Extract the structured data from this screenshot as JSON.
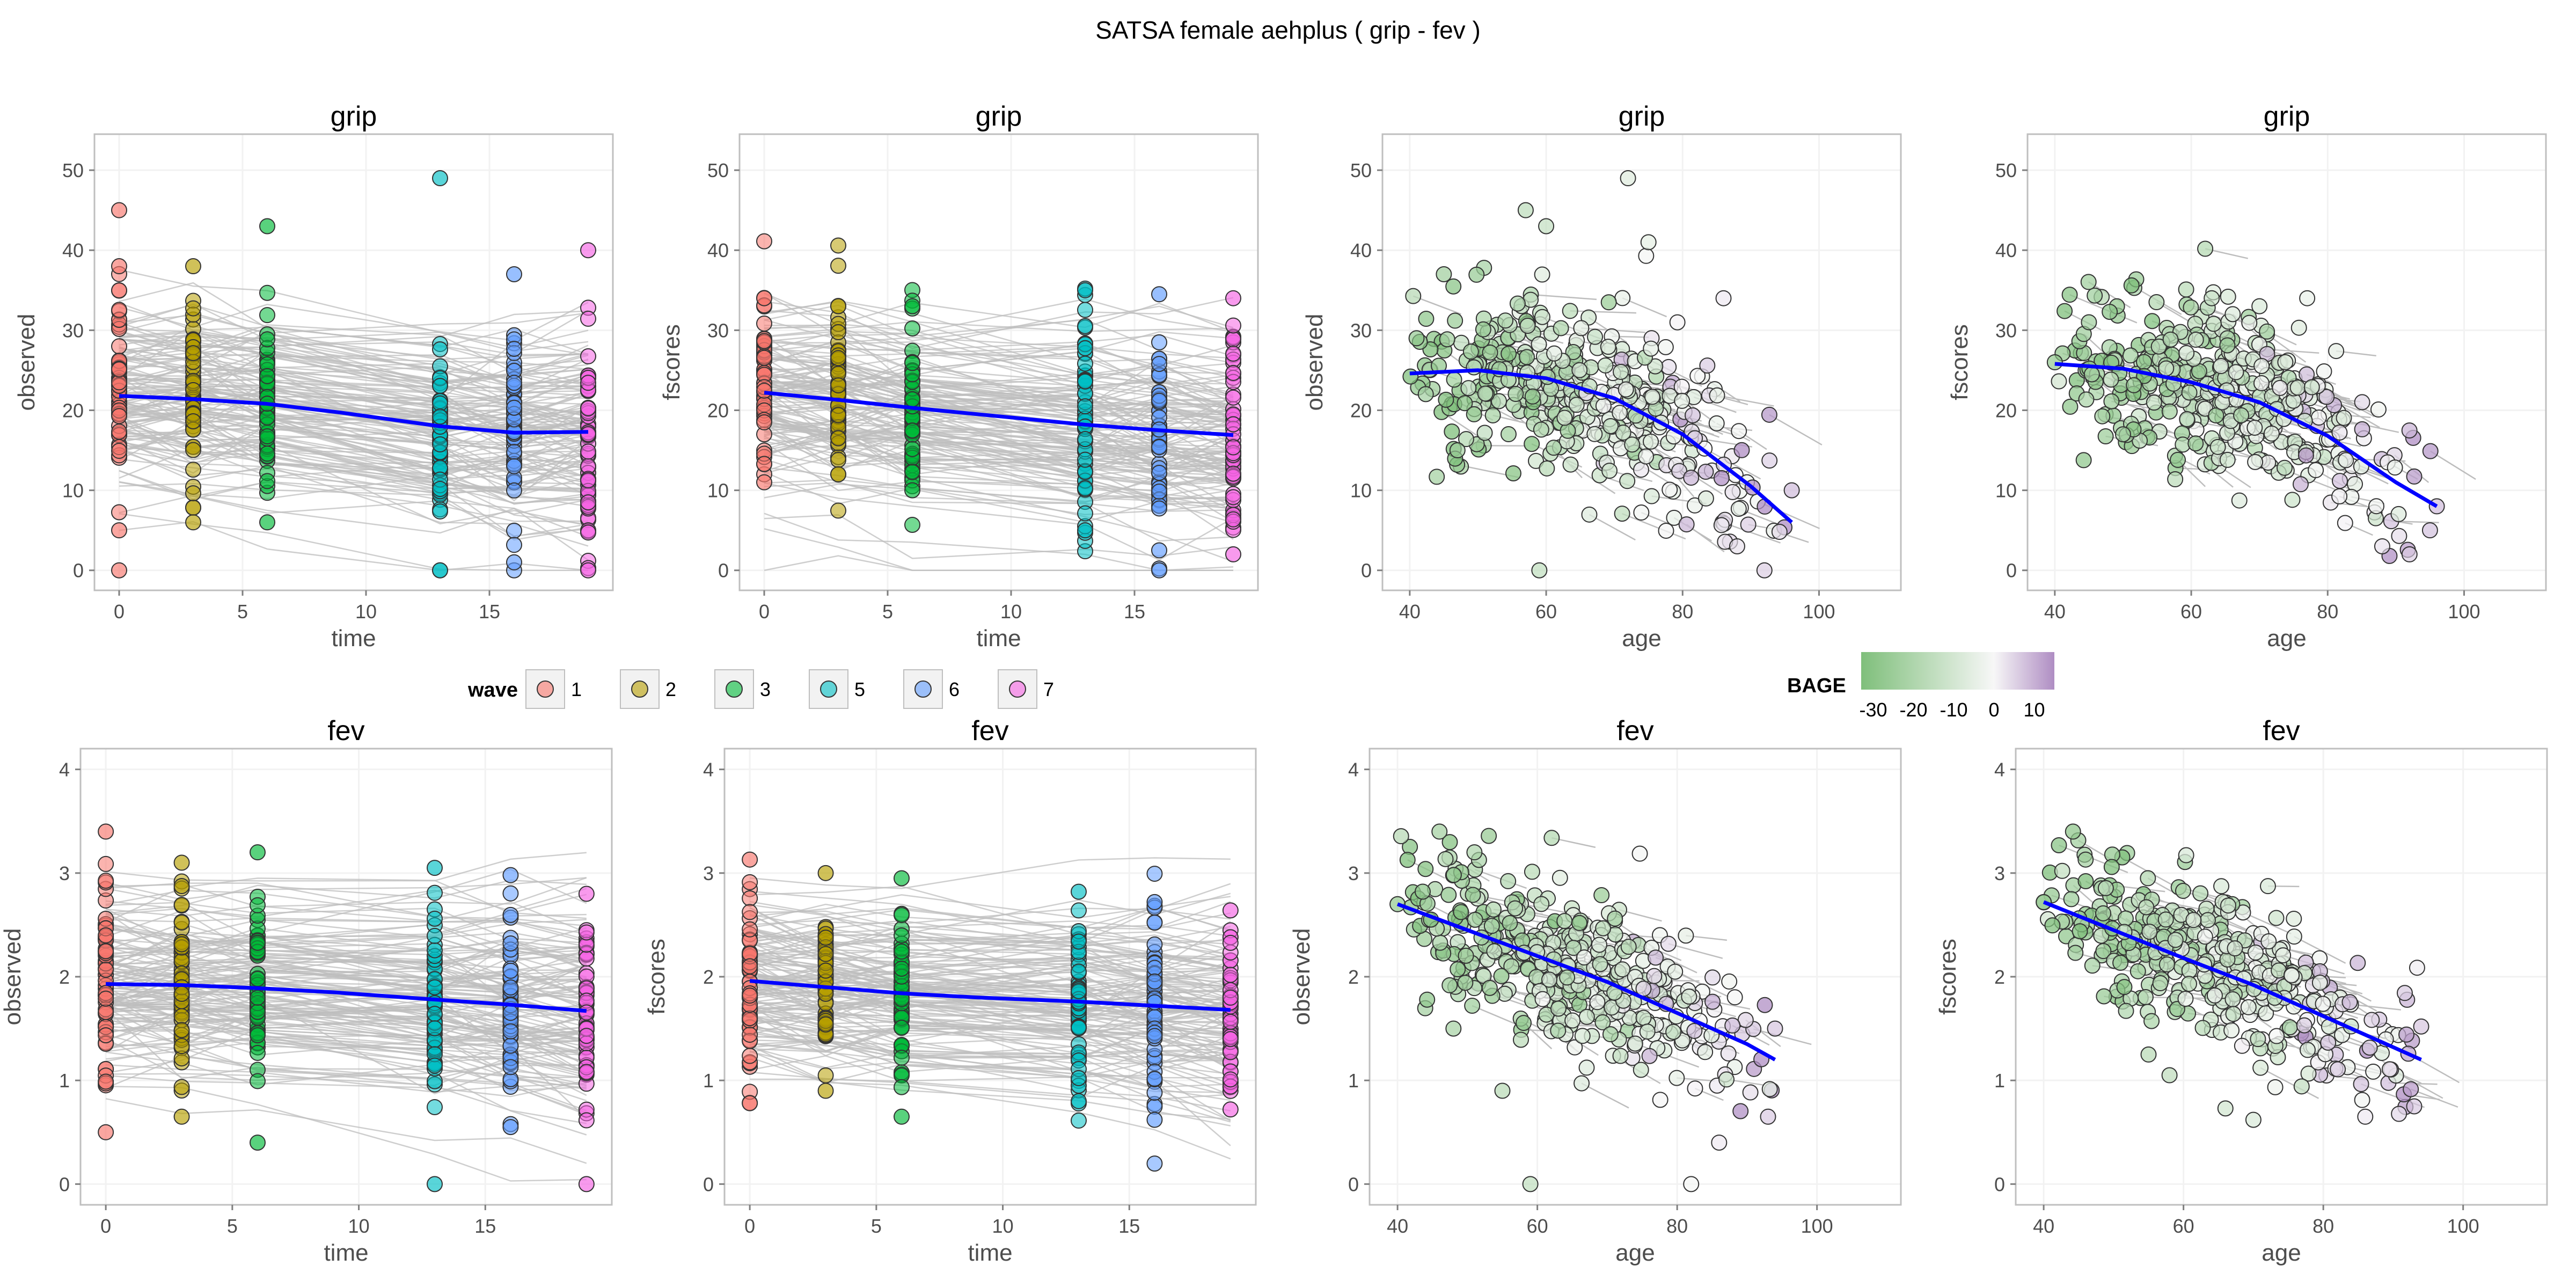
{
  "figure": {
    "title": "SATSA  female  aehplus ( grip - fev )"
  },
  "legends": {
    "wave": {
      "title": "wave",
      "entries": [
        {
          "label": "1",
          "color": "#F8766D"
        },
        {
          "label": "2",
          "color": "#B79F00"
        },
        {
          "label": "3",
          "color": "#00BA38"
        },
        {
          "label": "5",
          "color": "#00BFC4"
        },
        {
          "label": "6",
          "color": "#619CFF"
        },
        {
          "label": "7",
          "color": "#F564E3"
        }
      ]
    },
    "bage": {
      "title": "BAGE",
      "tick_labels": [
        "-30",
        "-20",
        "-10",
        "0",
        "10"
      ],
      "tick_values": [
        -30,
        -20,
        -10,
        0,
        10
      ],
      "range": [
        -33,
        15
      ],
      "low_color": "#7FBF7B",
      "mid_color": "#F7F7F7",
      "high_color": "#AF8DC3"
    }
  },
  "colors": {
    "trajectory_lines": "#BDBDBD",
    "smooth_line": "#0000FF",
    "panel_border": "#BFBFBF",
    "grid": "#F2F2F2"
  },
  "chart_data": [
    {
      "type": "line",
      "title": "grip",
      "xlabel": "time",
      "ylabel": "observed",
      "xlim": [
        -1,
        20
      ],
      "ylim": [
        -2.5,
        54.5
      ],
      "x_ticks": [
        0,
        5,
        10,
        15
      ],
      "x_tick_labels": [
        "0",
        "5",
        "10",
        "15"
      ],
      "y_ticks": [
        0,
        10,
        20,
        30,
        40,
        50
      ],
      "y_tick_labels": [
        "0",
        "10",
        "20",
        "30",
        "40",
        "50"
      ],
      "grid": true,
      "color_by": "wave",
      "trend": {
        "x": [
          0,
          3,
          6,
          9,
          13,
          16,
          19
        ],
        "y": [
          21.8,
          21.4,
          20.8,
          19.7,
          18.0,
          17.2,
          17.3
        ]
      },
      "points": [
        {
          "x": 0,
          "y": 45,
          "wave": "1"
        },
        {
          "x": 0,
          "y": 0,
          "wave": "1"
        },
        {
          "x": 0,
          "y": 38,
          "wave": "1"
        },
        {
          "x": 0,
          "y": 5,
          "wave": "1"
        },
        {
          "x": 3,
          "y": 38,
          "wave": "2"
        },
        {
          "x": 3,
          "y": 6,
          "wave": "2"
        },
        {
          "x": 6,
          "y": 43,
          "wave": "3"
        },
        {
          "x": 6,
          "y": 6,
          "wave": "3"
        },
        {
          "x": 13,
          "y": 49,
          "wave": "5"
        },
        {
          "x": 13,
          "y": 0,
          "wave": "5"
        },
        {
          "x": 16,
          "y": 37,
          "wave": "6"
        },
        {
          "x": 16,
          "y": 1,
          "wave": "6"
        },
        {
          "x": 19,
          "y": 40,
          "wave": "7"
        },
        {
          "x": 19,
          "y": 0,
          "wave": "7"
        }
      ]
    },
    {
      "type": "line",
      "title": "grip",
      "xlabel": "time",
      "ylabel": "fscores",
      "xlim": [
        -1,
        20
      ],
      "ylim": [
        -2.5,
        54.5
      ],
      "x_ticks": [
        0,
        5,
        10,
        15
      ],
      "x_tick_labels": [
        "0",
        "5",
        "10",
        "15"
      ],
      "y_ticks": [
        0,
        10,
        20,
        30,
        40,
        50
      ],
      "y_tick_labels": [
        "0",
        "10",
        "20",
        "30",
        "40",
        "50"
      ],
      "grid": true,
      "color_by": "wave",
      "trend": {
        "x": [
          0,
          3,
          6,
          9,
          13,
          16,
          19
        ],
        "y": [
          22.2,
          21.3,
          20.3,
          19.4,
          18.2,
          17.5,
          16.9
        ]
      },
      "points": [
        {
          "x": 0,
          "y": 34,
          "wave": "1"
        },
        {
          "x": 0,
          "y": 11,
          "wave": "1"
        },
        {
          "x": 3,
          "y": 33,
          "wave": "2"
        },
        {
          "x": 3,
          "y": 12,
          "wave": "2"
        },
        {
          "x": 6,
          "y": 33,
          "wave": "3"
        },
        {
          "x": 6,
          "y": 10,
          "wave": "3"
        },
        {
          "x": 13,
          "y": 35,
          "wave": "5"
        },
        {
          "x": 13,
          "y": 5,
          "wave": "5"
        },
        {
          "x": 16,
          "y": 34.5,
          "wave": "6"
        },
        {
          "x": 16,
          "y": 2.5,
          "wave": "6"
        },
        {
          "x": 19,
          "y": 34,
          "wave": "7"
        },
        {
          "x": 19,
          "y": 2,
          "wave": "7"
        }
      ]
    },
    {
      "type": "scatter",
      "title": "grip",
      "xlabel": "age",
      "ylabel": "observed",
      "xlim": [
        36,
        112
      ],
      "ylim": [
        -2.5,
        54.5
      ],
      "x_ticks": [
        40,
        60,
        80,
        100
      ],
      "x_tick_labels": [
        "40",
        "60",
        "80",
        "100"
      ],
      "y_ticks": [
        0,
        10,
        20,
        30,
        40,
        50
      ],
      "y_tick_labels": [
        "0",
        "10",
        "20",
        "30",
        "40",
        "50"
      ],
      "grid": true,
      "color_by": "BAGE",
      "trend": {
        "x": [
          40,
          50,
          60,
          70,
          80,
          90,
          96
        ],
        "y": [
          24.6,
          25.0,
          24.0,
          21.5,
          17.0,
          10.5,
          6.0
        ]
      },
      "points": [
        {
          "x": 57,
          "y": 45
        },
        {
          "x": 72,
          "y": 49
        },
        {
          "x": 59,
          "y": 0
        },
        {
          "x": 96,
          "y": 10
        },
        {
          "x": 41,
          "y": 29
        },
        {
          "x": 45,
          "y": 37
        },
        {
          "x": 60,
          "y": 43
        },
        {
          "x": 75,
          "y": 41
        },
        {
          "x": 92,
          "y": 0
        },
        {
          "x": 86,
          "y": 34
        },
        {
          "x": 47,
          "y": 15
        },
        {
          "x": 88,
          "y": 3
        }
      ]
    },
    {
      "type": "scatter",
      "title": "grip",
      "xlabel": "age",
      "ylabel": "fscores",
      "xlim": [
        36,
        112
      ],
      "ylim": [
        -2.5,
        54.5
      ],
      "x_ticks": [
        40,
        60,
        80,
        100
      ],
      "x_tick_labels": [
        "40",
        "60",
        "80",
        "100"
      ],
      "y_ticks": [
        0,
        10,
        20,
        30,
        40,
        50
      ],
      "y_tick_labels": [
        "0",
        "10",
        "20",
        "30",
        "40",
        "50"
      ],
      "grid": true,
      "color_by": "BAGE",
      "trend": {
        "x": [
          40,
          50,
          60,
          70,
          80,
          90,
          96
        ],
        "y": [
          25.8,
          25.2,
          23.5,
          21.0,
          16.8,
          11.0,
          8.0
        ]
      },
      "points": [
        {
          "x": 40,
          "y": 26
        },
        {
          "x": 45,
          "y": 31
        },
        {
          "x": 63,
          "y": 34
        },
        {
          "x": 77,
          "y": 34
        },
        {
          "x": 92,
          "y": 2
        },
        {
          "x": 95,
          "y": 5
        },
        {
          "x": 96,
          "y": 8
        },
        {
          "x": 50,
          "y": 17
        },
        {
          "x": 88,
          "y": 3
        },
        {
          "x": 70,
          "y": 33
        }
      ]
    },
    {
      "type": "line",
      "title": "fev",
      "xlabel": "time",
      "ylabel": "observed",
      "xlim": [
        -1,
        20
      ],
      "ylim": [
        -0.2,
        4.2
      ],
      "x_ticks": [
        0,
        5,
        10,
        15
      ],
      "x_tick_labels": [
        "0",
        "5",
        "10",
        "15"
      ],
      "y_ticks": [
        0,
        1,
        2,
        3,
        4
      ],
      "y_tick_labels": [
        "0",
        "1",
        "2",
        "3",
        "4"
      ],
      "grid": true,
      "color_by": "wave",
      "trend": {
        "x": [
          0,
          3,
          6,
          9,
          13,
          16,
          19
        ],
        "y": [
          1.93,
          1.92,
          1.89,
          1.85,
          1.78,
          1.73,
          1.67
        ]
      },
      "points": [
        {
          "x": 0,
          "y": 3.4,
          "wave": "1"
        },
        {
          "x": 0,
          "y": 0.5,
          "wave": "1"
        },
        {
          "x": 3,
          "y": 3.1,
          "wave": "2"
        },
        {
          "x": 3,
          "y": 0.65,
          "wave": "2"
        },
        {
          "x": 6,
          "y": 3.2,
          "wave": "3"
        },
        {
          "x": 6,
          "y": 0.4,
          "wave": "3"
        },
        {
          "x": 13,
          "y": 3.05,
          "wave": "5"
        },
        {
          "x": 13,
          "y": 0.0,
          "wave": "5"
        },
        {
          "x": 16,
          "y": 2.98,
          "wave": "6"
        },
        {
          "x": 16,
          "y": 0.55,
          "wave": "6"
        },
        {
          "x": 19,
          "y": 2.8,
          "wave": "7"
        },
        {
          "x": 19,
          "y": 0.0,
          "wave": "7"
        }
      ]
    },
    {
      "type": "line",
      "title": "fev",
      "xlabel": "time",
      "ylabel": "fscores",
      "xlim": [
        -1,
        20
      ],
      "ylim": [
        -0.2,
        4.2
      ],
      "x_ticks": [
        0,
        5,
        10,
        15
      ],
      "x_tick_labels": [
        "0",
        "5",
        "10",
        "15"
      ],
      "y_ticks": [
        0,
        1,
        2,
        3,
        4
      ],
      "y_tick_labels": [
        "0",
        "1",
        "2",
        "3",
        "4"
      ],
      "grid": true,
      "color_by": "wave",
      "trend": {
        "x": [
          0,
          3,
          6,
          9,
          13,
          16,
          19
        ],
        "y": [
          1.96,
          1.9,
          1.84,
          1.8,
          1.76,
          1.72,
          1.68
        ]
      },
      "points": [
        {
          "x": 0,
          "y": 3.13,
          "wave": "1"
        },
        {
          "x": 0,
          "y": 0.78,
          "wave": "1"
        },
        {
          "x": 3,
          "y": 3.0,
          "wave": "2"
        },
        {
          "x": 3,
          "y": 0.9,
          "wave": "2"
        },
        {
          "x": 6,
          "y": 2.95,
          "wave": "3"
        },
        {
          "x": 6,
          "y": 0.65,
          "wave": "3"
        },
        {
          "x": 13,
          "y": 2.82,
          "wave": "5"
        },
        {
          "x": 13,
          "y": 0.8,
          "wave": "5"
        },
        {
          "x": 16,
          "y": 2.72,
          "wave": "6"
        },
        {
          "x": 16,
          "y": 0.62,
          "wave": "6"
        },
        {
          "x": 19,
          "y": 2.64,
          "wave": "7"
        },
        {
          "x": 19,
          "y": 0.72,
          "wave": "7"
        }
      ]
    },
    {
      "type": "scatter",
      "title": "fev",
      "xlabel": "age",
      "ylabel": "observed",
      "xlim": [
        36,
        112
      ],
      "ylim": [
        -0.2,
        4.2
      ],
      "x_ticks": [
        40,
        60,
        80,
        100
      ],
      "x_tick_labels": [
        "40",
        "60",
        "80",
        "100"
      ],
      "y_ticks": [
        0,
        1,
        2,
        3,
        4
      ],
      "y_tick_labels": [
        "0",
        "1",
        "2",
        "3",
        "4"
      ],
      "grid": true,
      "color_by": "BAGE",
      "trend": {
        "x": [
          40,
          50,
          60,
          70,
          80,
          90,
          94
        ],
        "y": [
          2.7,
          2.45,
          2.2,
          1.95,
          1.65,
          1.35,
          1.2
        ]
      },
      "points": [
        {
          "x": 46,
          "y": 3.4
        },
        {
          "x": 40,
          "y": 2.7
        },
        {
          "x": 59,
          "y": 0.0
        },
        {
          "x": 82,
          "y": 0.0
        },
        {
          "x": 48,
          "y": 1.5
        },
        {
          "x": 93,
          "y": 0.65
        },
        {
          "x": 94,
          "y": 1.5
        },
        {
          "x": 55,
          "y": 0.9
        },
        {
          "x": 86,
          "y": 0.4
        },
        {
          "x": 51,
          "y": 3.2
        }
      ]
    },
    {
      "type": "scatter",
      "title": "fev",
      "xlabel": "age",
      "ylabel": "fscores",
      "xlim": [
        36,
        112
      ],
      "ylim": [
        -0.2,
        4.2
      ],
      "x_ticks": [
        40,
        60,
        80,
        100
      ],
      "x_tick_labels": [
        "40",
        "60",
        "80",
        "100"
      ],
      "y_ticks": [
        0,
        1,
        2,
        3,
        4
      ],
      "y_tick_labels": [
        "0",
        "1",
        "2",
        "3",
        "4"
      ],
      "grid": true,
      "color_by": "BAGE",
      "trend": {
        "x": [
          40,
          50,
          60,
          70,
          80,
          90,
          94
        ],
        "y": [
          2.72,
          2.45,
          2.18,
          1.92,
          1.62,
          1.32,
          1.2
        ]
      },
      "points": [
        {
          "x": 40,
          "y": 2.72
        },
        {
          "x": 46,
          "y": 3.13
        },
        {
          "x": 70,
          "y": 0.62
        },
        {
          "x": 66,
          "y": 0.73
        },
        {
          "x": 94,
          "y": 1.52
        },
        {
          "x": 93,
          "y": 0.75
        },
        {
          "x": 55,
          "y": 1.25
        },
        {
          "x": 86,
          "y": 0.65
        },
        {
          "x": 58,
          "y": 1.05
        }
      ]
    }
  ]
}
